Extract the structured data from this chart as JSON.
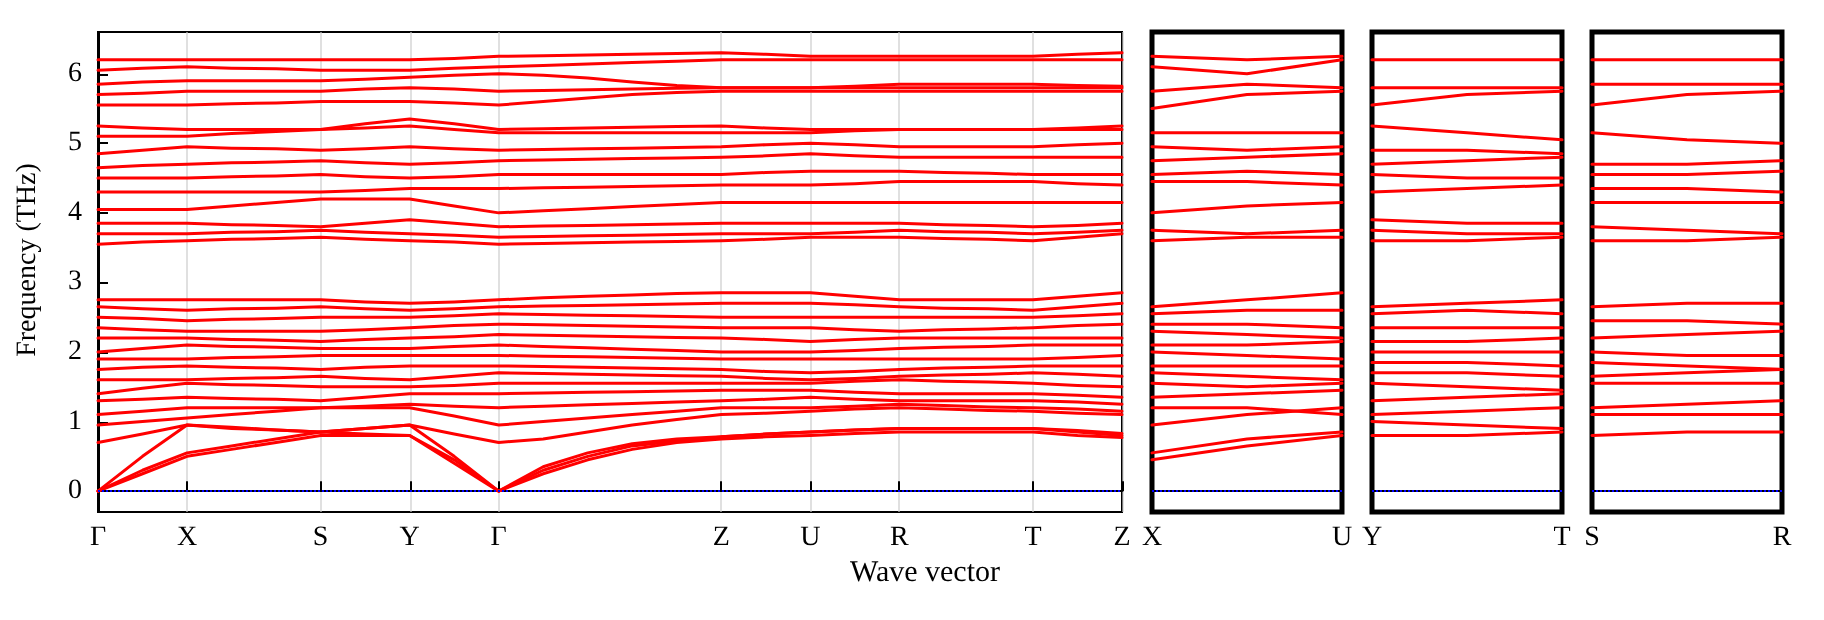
{
  "chart_data": [
    {
      "type": "line",
      "ylabel": "Frequency (THz)",
      "xlabel": "Wave vector",
      "grid": "x",
      "marker": "none",
      "line_style": "solid",
      "categories": [
        "Γ",
        null,
        "X",
        null,
        null,
        "S",
        null,
        "Y",
        null,
        "Γ",
        null,
        null,
        null,
        null,
        "Z",
        null,
        "U",
        null,
        "R",
        null,
        null,
        "T",
        null,
        "Z"
      ],
      "ylim": [
        -0.3,
        6.6
      ],
      "yticks": [
        0,
        1,
        2,
        3,
        4,
        5,
        6
      ],
      "ref_lines": [
        {
          "axis": "y",
          "value": 0,
          "color": "#0000ff",
          "line_style": "dotted"
        }
      ],
      "series": [
        {
          "color": "#ff0000",
          "values": [
            0,
            0.25,
            0.5,
            0.6,
            0.7,
            0.8,
            0.8,
            0.8,
            0.4,
            0,
            0.25,
            0.45,
            0.6,
            0.7,
            0.75,
            0.78,
            0.8,
            0.83,
            0.85,
            0.85,
            0.85,
            0.85,
            0.8,
            0.77
          ]
        },
        {
          "color": "#ff0000",
          "values": [
            0,
            0.3,
            0.55,
            0.65,
            0.75,
            0.85,
            0.82,
            0.8,
            0.45,
            0,
            0.3,
            0.5,
            0.65,
            0.72,
            0.78,
            0.82,
            0.85,
            0.88,
            0.9,
            0.9,
            0.9,
            0.9,
            0.85,
            0.8
          ]
        },
        {
          "color": "#ff0000",
          "values": [
            0,
            0.5,
            0.95,
            0.9,
            0.88,
            0.85,
            0.9,
            0.95,
            0.5,
            0,
            0.35,
            0.55,
            0.68,
            0.75,
            0.78,
            0.82,
            0.85,
            0.88,
            0.9,
            0.9,
            0.9,
            0.9,
            0.87,
            0.83
          ]
        },
        {
          "color": "#ff0000",
          "values": [
            0.7,
            0.82,
            0.95,
            0.92,
            0.88,
            0.85,
            0.9,
            0.95,
            0.82,
            0.7,
            0.75,
            0.85,
            0.95,
            1.03,
            1.1,
            1.12,
            1.15,
            1.18,
            1.2,
            1.18,
            1.16,
            1.15,
            1.12,
            1.1
          ]
        },
        {
          "color": "#ff0000",
          "values": [
            0.95,
            1.0,
            1.05,
            1.1,
            1.15,
            1.2,
            1.2,
            1.2,
            1.08,
            0.95,
            1.0,
            1.05,
            1.1,
            1.15,
            1.2,
            1.2,
            1.2,
            1.22,
            1.25,
            1.23,
            1.21,
            1.2,
            1.18,
            1.15
          ]
        },
        {
          "color": "#ff0000",
          "values": [
            1.1,
            1.15,
            1.2,
            1.2,
            1.2,
            1.2,
            1.22,
            1.25,
            1.22,
            1.2,
            1.22,
            1.24,
            1.26,
            1.28,
            1.3,
            1.32,
            1.35,
            1.32,
            1.3,
            1.3,
            1.3,
            1.3,
            1.28,
            1.25
          ]
        },
        {
          "color": "#ff0000",
          "values": [
            1.3,
            1.32,
            1.35,
            1.33,
            1.32,
            1.3,
            1.35,
            1.4,
            1.4,
            1.4,
            1.41,
            1.42,
            1.43,
            1.44,
            1.45,
            1.45,
            1.45,
            1.42,
            1.4,
            1.4,
            1.4,
            1.4,
            1.38,
            1.35
          ]
        },
        {
          "color": "#ff0000",
          "values": [
            1.4,
            1.48,
            1.55,
            1.53,
            1.52,
            1.5,
            1.5,
            1.5,
            1.52,
            1.55,
            1.55,
            1.55,
            1.55,
            1.55,
            1.55,
            1.55,
            1.55,
            1.58,
            1.6,
            1.58,
            1.57,
            1.55,
            1.52,
            1.5
          ]
        },
        {
          "color": "#ff0000",
          "values": [
            1.6,
            1.6,
            1.6,
            1.62,
            1.63,
            1.65,
            1.62,
            1.6,
            1.65,
            1.7,
            1.69,
            1.68,
            1.67,
            1.66,
            1.65,
            1.62,
            1.6,
            1.62,
            1.65,
            1.67,
            1.68,
            1.7,
            1.68,
            1.65
          ]
        },
        {
          "color": "#ff0000",
          "values": [
            1.75,
            1.78,
            1.8,
            1.78,
            1.77,
            1.75,
            1.78,
            1.8,
            1.8,
            1.8,
            1.79,
            1.78,
            1.77,
            1.76,
            1.75,
            1.72,
            1.7,
            1.72,
            1.75,
            1.77,
            1.78,
            1.8,
            1.8,
            1.8
          ]
        },
        {
          "color": "#ff0000",
          "values": [
            1.9,
            1.9,
            1.9,
            1.92,
            1.93,
            1.95,
            1.95,
            1.95,
            1.95,
            1.95,
            1.94,
            1.93,
            1.92,
            1.91,
            1.9,
            1.9,
            1.9,
            1.9,
            1.9,
            1.9,
            1.9,
            1.9,
            1.92,
            1.95
          ]
        },
        {
          "color": "#ff0000",
          "values": [
            2.0,
            2.05,
            2.1,
            2.08,
            2.07,
            2.05,
            2.05,
            2.05,
            2.08,
            2.1,
            2.08,
            2.06,
            2.04,
            2.02,
            2.0,
            2.0,
            2.0,
            2.02,
            2.05,
            2.07,
            2.08,
            2.1,
            2.1,
            2.1
          ]
        },
        {
          "color": "#ff0000",
          "values": [
            2.2,
            2.2,
            2.2,
            2.18,
            2.17,
            2.15,
            2.18,
            2.2,
            2.22,
            2.25,
            2.24,
            2.23,
            2.22,
            2.21,
            2.2,
            2.18,
            2.15,
            2.18,
            2.2,
            2.2,
            2.2,
            2.2,
            2.2,
            2.2
          ]
        },
        {
          "color": "#ff0000",
          "values": [
            2.35,
            2.32,
            2.3,
            2.3,
            2.3,
            2.3,
            2.32,
            2.35,
            2.38,
            2.4,
            2.39,
            2.38,
            2.37,
            2.36,
            2.35,
            2.35,
            2.35,
            2.32,
            2.3,
            2.32,
            2.33,
            2.35,
            2.38,
            2.4
          ]
        },
        {
          "color": "#ff0000",
          "values": [
            2.5,
            2.48,
            2.45,
            2.47,
            2.48,
            2.5,
            2.5,
            2.5,
            2.52,
            2.55,
            2.54,
            2.53,
            2.52,
            2.51,
            2.5,
            2.5,
            2.5,
            2.5,
            2.5,
            2.5,
            2.5,
            2.5,
            2.52,
            2.55
          ]
        },
        {
          "color": "#ff0000",
          "values": [
            2.65,
            2.62,
            2.6,
            2.62,
            2.63,
            2.65,
            2.62,
            2.6,
            2.62,
            2.65,
            2.66,
            2.67,
            2.68,
            2.69,
            2.7,
            2.7,
            2.7,
            2.68,
            2.65,
            2.63,
            2.62,
            2.6,
            2.65,
            2.7
          ]
        },
        {
          "color": "#ff0000",
          "values": [
            2.75,
            2.75,
            2.75,
            2.75,
            2.75,
            2.75,
            2.72,
            2.7,
            2.72,
            2.75,
            2.78,
            2.8,
            2.82,
            2.84,
            2.85,
            2.85,
            2.85,
            2.8,
            2.75,
            2.75,
            2.75,
            2.75,
            2.8,
            2.85
          ]
        },
        {
          "color": "#ff0000",
          "values": [
            3.55,
            3.58,
            3.6,
            3.62,
            3.63,
            3.65,
            3.62,
            3.6,
            3.58,
            3.55,
            3.56,
            3.57,
            3.58,
            3.59,
            3.6,
            3.62,
            3.65,
            3.65,
            3.65,
            3.63,
            3.62,
            3.6,
            3.65,
            3.7
          ]
        },
        {
          "color": "#ff0000",
          "values": [
            3.7,
            3.7,
            3.7,
            3.72,
            3.73,
            3.75,
            3.72,
            3.7,
            3.68,
            3.65,
            3.66,
            3.67,
            3.68,
            3.69,
            3.7,
            3.7,
            3.7,
            3.72,
            3.75,
            3.73,
            3.72,
            3.7,
            3.72,
            3.75
          ]
        },
        {
          "color": "#ff0000",
          "values": [
            3.85,
            3.85,
            3.85,
            3.83,
            3.82,
            3.8,
            3.85,
            3.9,
            3.85,
            3.8,
            3.81,
            3.82,
            3.83,
            3.84,
            3.85,
            3.85,
            3.85,
            3.85,
            3.85,
            3.83,
            3.82,
            3.8,
            3.82,
            3.85
          ]
        },
        {
          "color": "#ff0000",
          "values": [
            4.05,
            4.05,
            4.05,
            4.1,
            4.15,
            4.2,
            4.2,
            4.2,
            4.1,
            4.0,
            4.03,
            4.06,
            4.09,
            4.12,
            4.15,
            4.15,
            4.15,
            4.15,
            4.15,
            4.15,
            4.15,
            4.15,
            4.15,
            4.15
          ]
        },
        {
          "color": "#ff0000",
          "values": [
            4.3,
            4.3,
            4.3,
            4.3,
            4.3,
            4.3,
            4.32,
            4.35,
            4.35,
            4.35,
            4.36,
            4.37,
            4.38,
            4.39,
            4.4,
            4.4,
            4.4,
            4.42,
            4.45,
            4.45,
            4.45,
            4.45,
            4.42,
            4.4
          ]
        },
        {
          "color": "#ff0000",
          "values": [
            4.5,
            4.5,
            4.5,
            4.52,
            4.53,
            4.55,
            4.52,
            4.5,
            4.52,
            4.55,
            4.55,
            4.55,
            4.55,
            4.55,
            4.55,
            4.58,
            4.6,
            4.6,
            4.6,
            4.58,
            4.57,
            4.55,
            4.55,
            4.55
          ]
        },
        {
          "color": "#ff0000",
          "values": [
            4.65,
            4.68,
            4.7,
            4.72,
            4.73,
            4.75,
            4.72,
            4.7,
            4.72,
            4.75,
            4.76,
            4.77,
            4.78,
            4.79,
            4.8,
            4.82,
            4.85,
            4.82,
            4.8,
            4.8,
            4.8,
            4.8,
            4.8,
            4.8
          ]
        },
        {
          "color": "#ff0000",
          "values": [
            4.85,
            4.9,
            4.95,
            4.93,
            4.92,
            4.9,
            4.92,
            4.95,
            4.92,
            4.9,
            4.91,
            4.92,
            4.93,
            4.94,
            4.95,
            4.98,
            5.0,
            4.98,
            4.95,
            4.95,
            4.95,
            4.95,
            4.98,
            5.0
          ]
        },
        {
          "color": "#ff0000",
          "values": [
            5.1,
            5.1,
            5.1,
            5.14,
            5.17,
            5.2,
            5.22,
            5.25,
            5.2,
            5.15,
            5.15,
            5.15,
            5.15,
            5.15,
            5.15,
            5.15,
            5.15,
            5.18,
            5.2,
            5.2,
            5.2,
            5.2,
            5.2,
            5.2
          ]
        },
        {
          "color": "#ff0000",
          "values": [
            5.25,
            5.22,
            5.2,
            5.2,
            5.2,
            5.2,
            5.28,
            5.35,
            5.28,
            5.2,
            5.21,
            5.22,
            5.23,
            5.24,
            5.25,
            5.22,
            5.2,
            5.2,
            5.2,
            5.2,
            5.2,
            5.2,
            5.22,
            5.25
          ]
        },
        {
          "color": "#ff0000",
          "values": [
            5.55,
            5.55,
            5.55,
            5.57,
            5.58,
            5.6,
            5.6,
            5.6,
            5.58,
            5.55,
            5.6,
            5.65,
            5.7,
            5.73,
            5.75,
            5.75,
            5.75,
            5.75,
            5.75,
            5.75,
            5.75,
            5.75,
            5.75,
            5.75
          ]
        },
        {
          "color": "#ff0000",
          "values": [
            5.7,
            5.72,
            5.75,
            5.75,
            5.75,
            5.75,
            5.78,
            5.8,
            5.78,
            5.75,
            5.76,
            5.77,
            5.78,
            5.79,
            5.8,
            5.8,
            5.8,
            5.8,
            5.8,
            5.8,
            5.8,
            5.8,
            5.8,
            5.8
          ]
        },
        {
          "color": "#ff0000",
          "values": [
            5.85,
            5.88,
            5.9,
            5.9,
            5.9,
            5.9,
            5.92,
            5.95,
            5.98,
            6.0,
            5.98,
            5.94,
            5.88,
            5.83,
            5.8,
            5.8,
            5.8,
            5.82,
            5.85,
            5.85,
            5.85,
            5.85,
            5.83,
            5.82
          ]
        },
        {
          "color": "#ff0000",
          "values": [
            6.05,
            6.08,
            6.1,
            6.08,
            6.07,
            6.05,
            6.05,
            6.05,
            6.08,
            6.1,
            6.12,
            6.14,
            6.16,
            6.18,
            6.2,
            6.2,
            6.2,
            6.2,
            6.2,
            6.2,
            6.2,
            6.2,
            6.2,
            6.2
          ]
        },
        {
          "color": "#ff0000",
          "values": [
            6.2,
            6.2,
            6.2,
            6.2,
            6.2,
            6.2,
            6.2,
            6.2,
            6.22,
            6.25,
            6.26,
            6.27,
            6.28,
            6.29,
            6.3,
            6.28,
            6.25,
            6.25,
            6.25,
            6.25,
            6.25,
            6.25,
            6.28,
            6.3
          ]
        }
      ]
    },
    {
      "type": "line",
      "tick_labels": "x",
      "marker": "none",
      "line_style": "solid",
      "categories": [
        "X",
        null,
        "U"
      ],
      "ylim": [
        -0.3,
        6.6
      ],
      "ref_lines": [
        {
          "axis": "y",
          "value": 0,
          "color": "#0000ff",
          "line_style": "dotted"
        }
      ],
      "series": [
        {
          "color": "#ff0000",
          "values": [
            0.45,
            0.65,
            0.8
          ]
        },
        {
          "color": "#ff0000",
          "values": [
            0.55,
            0.75,
            0.85
          ]
        },
        {
          "color": "#ff0000",
          "values": [
            0.95,
            1.1,
            1.2
          ]
        },
        {
          "color": "#ff0000",
          "values": [
            1.2,
            1.2,
            1.1
          ]
        },
        {
          "color": "#ff0000",
          "values": [
            1.35,
            1.4,
            1.45
          ]
        },
        {
          "color": "#ff0000",
          "values": [
            1.55,
            1.5,
            1.55
          ]
        },
        {
          "color": "#ff0000",
          "values": [
            1.7,
            1.65,
            1.6
          ]
        },
        {
          "color": "#ff0000",
          "values": [
            1.8,
            1.8,
            1.8
          ]
        },
        {
          "color": "#ff0000",
          "values": [
            2.0,
            1.95,
            1.9
          ]
        },
        {
          "color": "#ff0000",
          "values": [
            2.1,
            2.1,
            2.15
          ]
        },
        {
          "color": "#ff0000",
          "values": [
            2.3,
            2.25,
            2.2
          ]
        },
        {
          "color": "#ff0000",
          "values": [
            2.4,
            2.4,
            2.35
          ]
        },
        {
          "color": "#ff0000",
          "values": [
            2.55,
            2.6,
            2.6
          ]
        },
        {
          "color": "#ff0000",
          "values": [
            2.65,
            2.75,
            2.85
          ]
        },
        {
          "color": "#ff0000",
          "values": [
            3.6,
            3.65,
            3.65
          ]
        },
        {
          "color": "#ff0000",
          "values": [
            3.75,
            3.7,
            3.75
          ]
        },
        {
          "color": "#ff0000",
          "values": [
            4.0,
            4.1,
            4.15
          ]
        },
        {
          "color": "#ff0000",
          "values": [
            4.45,
            4.45,
            4.4
          ]
        },
        {
          "color": "#ff0000",
          "values": [
            4.55,
            4.6,
            4.55
          ]
        },
        {
          "color": "#ff0000",
          "values": [
            4.75,
            4.8,
            4.85
          ]
        },
        {
          "color": "#ff0000",
          "values": [
            4.95,
            4.9,
            4.95
          ]
        },
        {
          "color": "#ff0000",
          "values": [
            5.15,
            5.15,
            5.15
          ]
        },
        {
          "color": "#ff0000",
          "values": [
            5.5,
            5.7,
            5.75
          ]
        },
        {
          "color": "#ff0000",
          "values": [
            5.75,
            5.85,
            5.8
          ]
        },
        {
          "color": "#ff0000",
          "values": [
            6.1,
            6.0,
            6.2
          ]
        },
        {
          "color": "#ff0000",
          "values": [
            6.25,
            6.2,
            6.25
          ]
        }
      ]
    },
    {
      "type": "line",
      "tick_labels": "x",
      "marker": "none",
      "line_style": "solid",
      "categories": [
        "Y",
        null,
        "T"
      ],
      "ylim": [
        -0.3,
        6.6
      ],
      "ref_lines": [
        {
          "axis": "y",
          "value": 0,
          "color": "#0000ff",
          "line_style": "dotted"
        }
      ],
      "series": [
        {
          "color": "#ff0000",
          "values": [
            0.8,
            0.8,
            0.85
          ]
        },
        {
          "color": "#ff0000",
          "values": [
            1.0,
            0.95,
            0.9
          ]
        },
        {
          "color": "#ff0000",
          "values": [
            1.1,
            1.15,
            1.2
          ]
        },
        {
          "color": "#ff0000",
          "values": [
            1.3,
            1.35,
            1.4
          ]
        },
        {
          "color": "#ff0000",
          "values": [
            1.55,
            1.5,
            1.45
          ]
        },
        {
          "color": "#ff0000",
          "values": [
            1.7,
            1.7,
            1.65
          ]
        },
        {
          "color": "#ff0000",
          "values": [
            1.85,
            1.85,
            1.8
          ]
        },
        {
          "color": "#ff0000",
          "values": [
            2.0,
            2.0,
            2.0
          ]
        },
        {
          "color": "#ff0000",
          "values": [
            2.15,
            2.15,
            2.2
          ]
        },
        {
          "color": "#ff0000",
          "values": [
            2.35,
            2.35,
            2.35
          ]
        },
        {
          "color": "#ff0000",
          "values": [
            2.55,
            2.6,
            2.55
          ]
        },
        {
          "color": "#ff0000",
          "values": [
            2.65,
            2.7,
            2.75
          ]
        },
        {
          "color": "#ff0000",
          "values": [
            3.6,
            3.6,
            3.65
          ]
        },
        {
          "color": "#ff0000",
          "values": [
            3.75,
            3.7,
            3.7
          ]
        },
        {
          "color": "#ff0000",
          "values": [
            3.9,
            3.85,
            3.85
          ]
        },
        {
          "color": "#ff0000",
          "values": [
            4.3,
            4.35,
            4.4
          ]
        },
        {
          "color": "#ff0000",
          "values": [
            4.55,
            4.5,
            4.5
          ]
        },
        {
          "color": "#ff0000",
          "values": [
            4.7,
            4.75,
            4.8
          ]
        },
        {
          "color": "#ff0000",
          "values": [
            4.9,
            4.9,
            4.85
          ]
        },
        {
          "color": "#ff0000",
          "values": [
            5.25,
            5.15,
            5.05
          ]
        },
        {
          "color": "#ff0000",
          "values": [
            5.55,
            5.7,
            5.75
          ]
        },
        {
          "color": "#ff0000",
          "values": [
            5.8,
            5.8,
            5.8
          ]
        },
        {
          "color": "#ff0000",
          "values": [
            6.2,
            6.2,
            6.2
          ]
        }
      ]
    },
    {
      "type": "line",
      "tick_labels": "x",
      "marker": "none",
      "line_style": "solid",
      "categories": [
        "S",
        null,
        "R"
      ],
      "ylim": [
        -0.3,
        6.6
      ],
      "ref_lines": [
        {
          "axis": "y",
          "value": 0,
          "color": "#0000ff",
          "line_style": "dotted"
        }
      ],
      "series": [
        {
          "color": "#ff0000",
          "values": [
            0.8,
            0.85,
            0.85
          ]
        },
        {
          "color": "#ff0000",
          "values": [
            1.1,
            1.1,
            1.1
          ]
        },
        {
          "color": "#ff0000",
          "values": [
            1.2,
            1.25,
            1.3
          ]
        },
        {
          "color": "#ff0000",
          "values": [
            1.55,
            1.55,
            1.55
          ]
        },
        {
          "color": "#ff0000",
          "values": [
            1.65,
            1.7,
            1.75
          ]
        },
        {
          "color": "#ff0000",
          "values": [
            1.85,
            1.8,
            1.75
          ]
        },
        {
          "color": "#ff0000",
          "values": [
            2.0,
            1.95,
            1.95
          ]
        },
        {
          "color": "#ff0000",
          "values": [
            2.2,
            2.25,
            2.3
          ]
        },
        {
          "color": "#ff0000",
          "values": [
            2.45,
            2.45,
            2.4
          ]
        },
        {
          "color": "#ff0000",
          "values": [
            2.65,
            2.7,
            2.7
          ]
        },
        {
          "color": "#ff0000",
          "values": [
            3.6,
            3.6,
            3.65
          ]
        },
        {
          "color": "#ff0000",
          "values": [
            3.8,
            3.75,
            3.7
          ]
        },
        {
          "color": "#ff0000",
          "values": [
            4.15,
            4.15,
            4.15
          ]
        },
        {
          "color": "#ff0000",
          "values": [
            4.35,
            4.35,
            4.3
          ]
        },
        {
          "color": "#ff0000",
          "values": [
            4.55,
            4.55,
            4.6
          ]
        },
        {
          "color": "#ff0000",
          "values": [
            4.7,
            4.7,
            4.75
          ]
        },
        {
          "color": "#ff0000",
          "values": [
            5.15,
            5.05,
            5.0
          ]
        },
        {
          "color": "#ff0000",
          "values": [
            5.55,
            5.7,
            5.75
          ]
        },
        {
          "color": "#ff0000",
          "values": [
            5.85,
            5.85,
            5.85
          ]
        },
        {
          "color": "#ff0000",
          "values": [
            6.2,
            6.2,
            6.2
          ]
        }
      ]
    }
  ]
}
